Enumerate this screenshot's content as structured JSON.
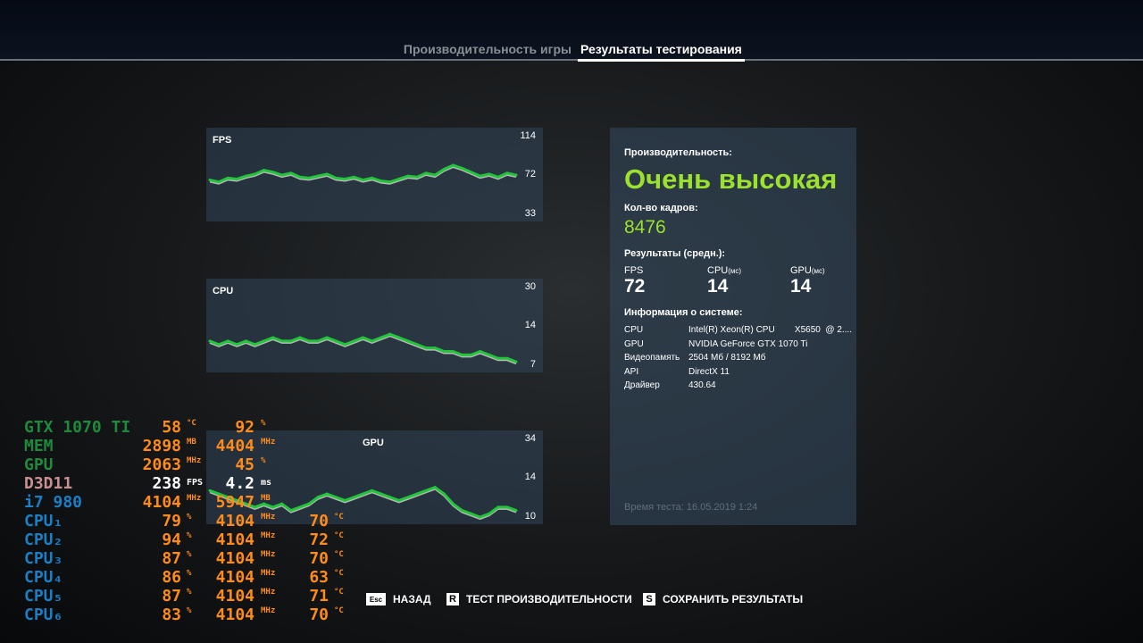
{
  "tabs": [
    {
      "label": "Производительность игры",
      "active": false
    },
    {
      "label": "Результаты тестирования",
      "active": true
    }
  ],
  "charts": [
    {
      "title": "FPS",
      "ticks": [
        "114",
        "72",
        "33"
      ],
      "range": [
        33,
        114
      ],
      "values": [
        68,
        66,
        70,
        69,
        72,
        74,
        78,
        76,
        73,
        75,
        71,
        70,
        72,
        74,
        70,
        69,
        71,
        68,
        70,
        67,
        66,
        69,
        72,
        71,
        75,
        73,
        79,
        83,
        80,
        76,
        72,
        74,
        71,
        75,
        73
      ]
    },
    {
      "title": "CPU",
      "ticks": [
        "30",
        "14",
        "7"
      ],
      "range": [
        7,
        30
      ],
      "values": [
        14,
        13,
        14,
        13,
        14,
        13,
        14,
        15,
        14,
        14,
        15,
        14,
        14,
        15,
        14,
        13,
        14,
        15,
        14,
        15,
        16,
        15,
        14,
        13,
        12,
        12,
        11,
        11,
        10,
        10,
        11,
        10,
        9,
        9,
        8
      ]
    },
    {
      "title": "GPU",
      "ticks": [
        "34",
        "14",
        "10"
      ],
      "range": [
        10,
        34
      ],
      "values": [
        18,
        17,
        16,
        15,
        14,
        13,
        14,
        13,
        14,
        12,
        13,
        14,
        16,
        17,
        16,
        15,
        16,
        17,
        18,
        17,
        16,
        15,
        16,
        17,
        18,
        19,
        17,
        14,
        12,
        11,
        10,
        11,
        13,
        13,
        12
      ]
    }
  ],
  "chart_colors": {
    "line": "#22c43a",
    "shadow": "#b8b8b8"
  },
  "panel": {
    "perf_label": "Производительность:",
    "perf_value": "Очень высокая",
    "frames_label": "Кол-во кадров:",
    "frames_value": "8476",
    "avg_label": "Результаты (средн.):",
    "avg": [
      {
        "label": "FPS",
        "unit": "",
        "value": "72"
      },
      {
        "label": "CPU",
        "unit": "(мс)",
        "value": "14"
      },
      {
        "label": "GPU",
        "unit": "(мс)",
        "value": "14"
      }
    ],
    "sys_label": "Информация о системе:",
    "sys": [
      {
        "k": "CPU",
        "v": "Intel(R) Xeon(R) CPU        X5650  @ 2...."
      },
      {
        "k": "GPU",
        "v": "NVIDIA GeForce GTX 1070 Ti"
      },
      {
        "k": "Видеопамять",
        "v": "2504 Мб / 8192 Мб"
      },
      {
        "k": "API",
        "v": "DirectX 11"
      },
      {
        "k": "Драйвер",
        "v": "430.64"
      }
    ],
    "test_time": "Время теста: 16.05.2019 1:24",
    "accent": "#9be12d"
  },
  "osd": [
    {
      "label": "GTX 1070 TI",
      "color": "#1e8a3c",
      "cells": [
        [
          "58",
          "°C"
        ],
        [
          "92",
          "%"
        ]
      ]
    },
    {
      "label": "MEM",
      "color": "#1e8a3c",
      "cells": [
        [
          "2898",
          "MB"
        ],
        [
          "4404",
          "MHz"
        ]
      ]
    },
    {
      "label": "GPU",
      "color": "#1e8a3c",
      "cells": [
        [
          "2063",
          "MHz"
        ],
        [
          "45",
          "%"
        ]
      ]
    },
    {
      "label": "D3D11",
      "color": "#c89090",
      "cells": [
        [
          "238",
          "FPS"
        ],
        [
          "4.2",
          "ms"
        ]
      ]
    },
    {
      "label": "i7 980",
      "color": "#1a7fc4",
      "cells": [
        [
          "4104",
          "MHz"
        ],
        [
          "5947",
          "MB"
        ]
      ]
    },
    {
      "label": "CPU₁",
      "color": "#1a7fc4",
      "cells": [
        [
          "79",
          "%"
        ],
        [
          "4104",
          "MHz"
        ],
        [
          "70",
          "°C"
        ]
      ]
    },
    {
      "label": "CPU₂",
      "color": "#1a7fc4",
      "cells": [
        [
          "94",
          "%"
        ],
        [
          "4104",
          "MHz"
        ],
        [
          "72",
          "°C"
        ]
      ]
    },
    {
      "label": "CPU₃",
      "color": "#1a7fc4",
      "cells": [
        [
          "87",
          "%"
        ],
        [
          "4104",
          "MHz"
        ],
        [
          "70",
          "°C"
        ]
      ]
    },
    {
      "label": "CPU₄",
      "color": "#1a7fc4",
      "cells": [
        [
          "86",
          "%"
        ],
        [
          "4104",
          "MHz"
        ],
        [
          "63",
          "°C"
        ]
      ]
    },
    {
      "label": "CPU₅",
      "color": "#1a7fc4",
      "cells": [
        [
          "87",
          "%"
        ],
        [
          "4104",
          "MHz"
        ],
        [
          "71",
          "°C"
        ]
      ]
    },
    {
      "label": "CPU₆",
      "color": "#1a7fc4",
      "cells": [
        [
          "83",
          "%"
        ],
        [
          "4104",
          "MHz"
        ],
        [
          "70",
          "°C"
        ]
      ]
    }
  ],
  "buttons": [
    {
      "key": "Esc",
      "label": "НАЗАД"
    },
    {
      "key": "R",
      "label": "ТЕСТ ПРОИЗВОДИТЕЛЬНОСТИ"
    },
    {
      "key": "S",
      "label": "СОХРАНИТЬ РЕЗУЛЬТАТЫ"
    }
  ]
}
